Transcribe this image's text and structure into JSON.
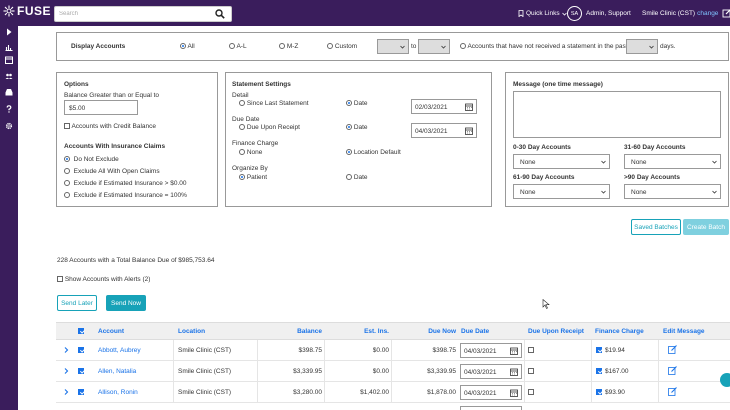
{
  "topbar": {
    "logo_text": "FUSE",
    "search_placeholder": "Search",
    "quick_links": "Quick Links",
    "avatar_initials": "SA",
    "user_name": "Admin, Support",
    "clinic": "Smile Clinic (CST)",
    "change_link": "change"
  },
  "display_accounts": {
    "label": "Display Accounts",
    "options": [
      "All",
      "A-L",
      "M-Z",
      "Custom"
    ],
    "selected": "All",
    "to_label": "to",
    "no_statement_label": "Accounts that have not received a statement in the past",
    "days_label": "days."
  },
  "options": {
    "title": "Options",
    "balance_label": "Balance Greater than or Equal to",
    "balance_value": "$5.00",
    "credit_balance_label": "Accounts with Credit Balance",
    "insurance_title": "Accounts With Insurance Claims",
    "insurance_options": [
      "Do Not Exclude",
      "Exclude All With Open Claims",
      "Exclude if Estimated Insurance > $0.00",
      "Exclude if Estimated Insurance = 100%"
    ]
  },
  "statement_settings": {
    "title": "Statement Settings",
    "detail_label": "Detail",
    "detail_opt1": "Since Last Statement",
    "detail_opt2": "Date",
    "detail_date": "02/03/2021",
    "due_date_label": "Due Date",
    "due_opt1": "Due Upon Receipt",
    "due_opt2": "Date",
    "due_date": "04/03/2021",
    "finance_label": "Finance Charge",
    "finance_opt1": "None",
    "finance_opt2": "Location Default",
    "organize_label": "Organize By",
    "organize_opt1": "Patient",
    "organize_opt2": "Date"
  },
  "message": {
    "title": "Message (one time message)",
    "aging": [
      {
        "label": "0-30 Day Accounts",
        "value": "None"
      },
      {
        "label": "31-60 Day Accounts",
        "value": "None"
      },
      {
        "label": "61-90 Day Accounts",
        "value": "None"
      },
      {
        "label": ">90 Day Accounts",
        "value": "None"
      }
    ]
  },
  "buttons": {
    "saved_batches": "Saved Batches",
    "create_batch": "Create Batch",
    "send_later": "Send Later",
    "send_now": "Send Now"
  },
  "summary": "228 Accounts with a Total Balance Due of $985,753.64",
  "show_alerts": "Show Accounts with Alerts (2)",
  "table": {
    "headers": [
      "Account",
      "Location",
      "Balance",
      "Est. Ins.",
      "Due Now",
      "Due Date",
      "Due Upon Receipt",
      "Finance Charge",
      "Edit Message"
    ],
    "rows": [
      {
        "account": "Abbott, Aubrey",
        "location": "Smile Clinic (CST)",
        "balance": "$398.75",
        "est_ins": "$0.00",
        "due_now": "$398.75",
        "due_date": "04/03/2021",
        "finance": "$19.94"
      },
      {
        "account": "Allen, Natalia",
        "location": "Smile Clinic (CST)",
        "balance": "$3,339.95",
        "est_ins": "$0.00",
        "due_now": "$3,339.95",
        "due_date": "04/03/2021",
        "finance": "$167.00"
      },
      {
        "account": "Allison, Ronin",
        "location": "Smile Clinic (CST)",
        "balance": "$3,280.00",
        "est_ins": "$1,402.00",
        "due_now": "$1,878.00",
        "due_date": "04/03/2021",
        "finance": "$93.90"
      }
    ]
  },
  "colors": {
    "nav": "#3a1d5c",
    "accent": "#17a2b8",
    "link": "#1a73e8"
  }
}
